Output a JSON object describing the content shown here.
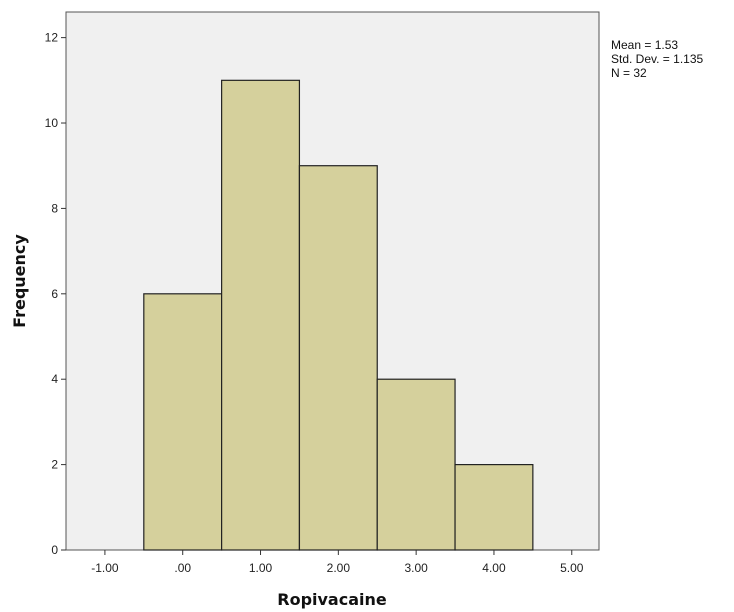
{
  "chart_data": {
    "type": "bar",
    "title": "",
    "xlabel": "Ropivacaine",
    "ylabel": "Frequency",
    "bins": [
      {
        "x0": -0.5,
        "x1": 0.5,
        "count": 6
      },
      {
        "x0": 0.5,
        "x1": 1.5,
        "count": 11
      },
      {
        "x0": 1.5,
        "x1": 2.5,
        "count": 9
      },
      {
        "x0": 2.5,
        "x1": 3.5,
        "count": 4
      },
      {
        "x0": 3.5,
        "x1": 4.5,
        "count": 2
      }
    ],
    "xlim": [
      -1.5,
      5.35
    ],
    "ylim": [
      0,
      12.6
    ],
    "x_ticks": [
      {
        "value": -1,
        "label": "-1.00"
      },
      {
        "value": 0,
        "label": ".00"
      },
      {
        "value": 1,
        "label": "1.00"
      },
      {
        "value": 2,
        "label": "2.00"
      },
      {
        "value": 3,
        "label": "3.00"
      },
      {
        "value": 4,
        "label": "4.00"
      },
      {
        "value": 5,
        "label": "5.00"
      }
    ],
    "y_ticks": [
      {
        "value": 0,
        "label": "0"
      },
      {
        "value": 2,
        "label": "2"
      },
      {
        "value": 4,
        "label": "4"
      },
      {
        "value": 6,
        "label": "6"
      },
      {
        "value": 8,
        "label": "8"
      },
      {
        "value": 10,
        "label": "10"
      },
      {
        "value": 12,
        "label": "12"
      }
    ],
    "stats": {
      "mean": "Mean = 1.53",
      "std_dev": "Std. Dev. = 1.135",
      "n": "N = 32"
    },
    "grid": false,
    "colors": {
      "plot_background": "#f0f0f0",
      "bar_fill": "#d5d09c",
      "bar_stroke": "#222222",
      "frame": "#555555"
    }
  }
}
